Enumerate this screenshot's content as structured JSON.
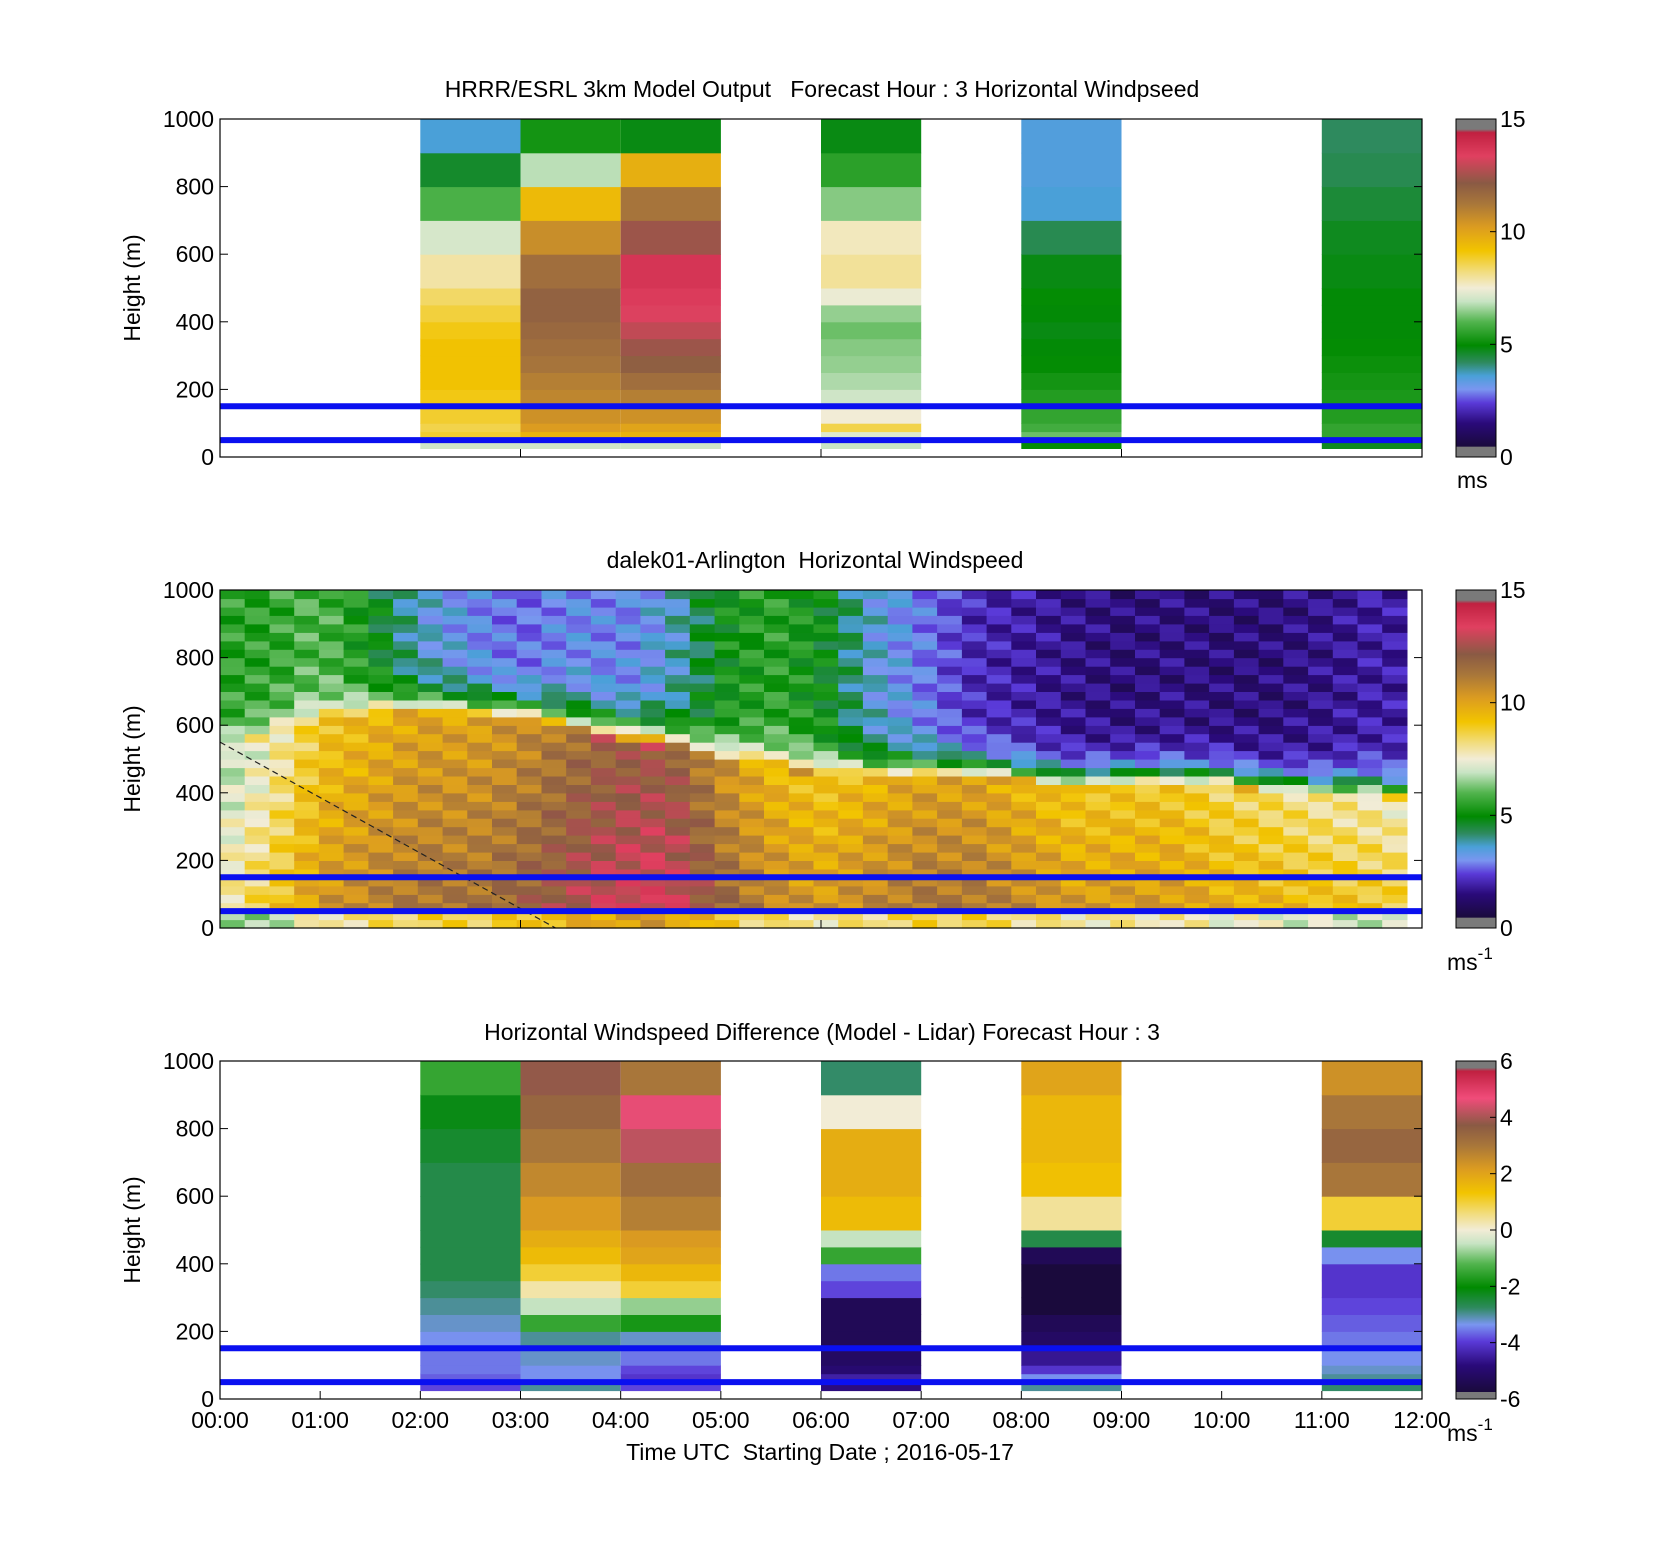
{
  "chart_data": [
    {
      "type": "heatmap",
      "title": "HRRR/ESRL 3km Model Output   Forecast Hour : 3 Horizontal Windpseed",
      "ylabel": "Height (m)",
      "xlabel": "",
      "xlim": [
        0,
        12
      ],
      "ylim": [
        0,
        1000
      ],
      "yticks": [
        "0",
        "200",
        "400",
        "600",
        "800",
        "1000"
      ],
      "colorbar": {
        "ticks": [
          "0",
          "5",
          "10",
          "15"
        ],
        "range": [
          0,
          15
        ],
        "unit": "ms"
      },
      "reference_lines_m": [
        50,
        150
      ],
      "height_bins_m": [
        25,
        50,
        75,
        100,
        150,
        200,
        250,
        300,
        350,
        400,
        450,
        500,
        600,
        700,
        800,
        900,
        1000
      ],
      "columns": [
        {
          "t0": 2,
          "t1": 3,
          "values": [
            7.0,
            8.8,
            8.6,
            8.8,
            9.0,
            9.2,
            9.2,
            9.2,
            9.0,
            8.7,
            8.4,
            7.9,
            7.1,
            5.9,
            4.6,
            3.6,
            2.5
          ]
        },
        {
          "t0": 3,
          "t1": 4,
          "values": [
            7.0,
            9.6,
            10.2,
            10.5,
            10.8,
            11.0,
            11.3,
            11.5,
            11.7,
            11.9,
            11.9,
            11.5,
            10.6,
            9.4,
            6.8,
            5.2,
            5.2
          ]
        },
        {
          "t0": 4,
          "t1": 5,
          "values": [
            7.0,
            9.6,
            10.0,
            10.5,
            11.0,
            11.5,
            12.0,
            12.4,
            12.9,
            13.3,
            13.6,
            13.9,
            12.4,
            11.3,
            9.7,
            4.8,
            4.8
          ]
        },
        {
          "t0": 6,
          "t1": 7,
          "values": [
            6.9,
            7.2,
            8.6,
            7.5,
            7.0,
            6.7,
            6.5,
            6.4,
            6.2,
            6.5,
            7.4,
            8.0,
            7.7,
            6.4,
            5.5,
            4.8,
            3.4
          ]
        },
        {
          "t0": 8,
          "t1": 9,
          "values": [
            5.0,
            6.2,
            5.8,
            5.6,
            5.4,
            5.2,
            5.0,
            4.9,
            4.8,
            4.9,
            5.0,
            4.8,
            4.3,
            3.6,
            3.5,
            3.5,
            3.2
          ]
        },
        {
          "t0": 11,
          "t1": 12,
          "values": [
            4.7,
            5.6,
            5.6,
            5.4,
            5.3,
            5.2,
            5.1,
            5.0,
            4.9,
            4.9,
            4.9,
            4.8,
            4.7,
            4.5,
            4.3,
            4.2,
            4.2
          ]
        }
      ]
    },
    {
      "type": "heatmap",
      "title": "dalek01-Arlington  Horizontal Windspeed",
      "ylabel": "Height (m)",
      "xlabel": "",
      "xlim": [
        0,
        12
      ],
      "ylim": [
        0,
        1000
      ],
      "yticks": [
        "0",
        "200",
        "400",
        "600",
        "800",
        "1000"
      ],
      "colorbar": {
        "ticks": [
          "0",
          "5",
          "10",
          "15"
        ],
        "range": [
          0,
          15
        ],
        "unit": "ms",
        "unit_exponent": "-1"
      },
      "reference_lines_m": [
        50,
        150
      ],
      "data_end_hour": 11.85,
      "dashed_line": {
        "from": [
          0,
          550
        ],
        "to": [
          3.35,
          0
        ]
      },
      "time_hours": [
        0,
        0.5,
        1,
        1.5,
        2,
        2.5,
        3,
        3.5,
        4,
        4.5,
        5,
        5.5,
        6,
        6.5,
        7,
        7.5,
        8,
        8.5,
        9,
        9.5,
        10,
        10.5,
        11,
        11.5,
        11.85
      ],
      "jet_top_m": [
        520,
        560,
        600,
        620,
        630,
        620,
        610,
        580,
        550,
        530,
        480,
        470,
        450,
        440,
        440,
        440,
        430,
        410,
        420,
        420,
        420,
        400,
        390,
        390,
        380
      ],
      "jet_core_ms": [
        8.0,
        9.0,
        10.5,
        11.0,
        11.5,
        11.5,
        12.0,
        12.8,
        13.5,
        13.6,
        12.0,
        11.0,
        10.5,
        11.0,
        11.5,
        11.5,
        11.0,
        10.5,
        10.5,
        10.5,
        10.0,
        9.8,
        9.5,
        9.3,
        9.0
      ],
      "aloft_ms": [
        5.5,
        5.5,
        6.0,
        5.0,
        3.5,
        3.0,
        2.5,
        3.0,
        2.8,
        3.5,
        5.0,
        5.5,
        5.0,
        3.5,
        2.8,
        1.8,
        1.5,
        1.2,
        1.0,
        1.1,
        1.0,
        1.0,
        1.2,
        1.5,
        1.5
      ]
    },
    {
      "type": "heatmap",
      "title": "Horizontal Windspeed Difference (Model - Lidar) Forecast Hour : 3",
      "ylabel": "Height (m)",
      "xlabel": "Time UTC  Starting Date ; 2016-05-17",
      "xlim": [
        0,
        12
      ],
      "ylim": [
        0,
        1000
      ],
      "xticks": [
        "00:00",
        "01:00",
        "02:00",
        "03:00",
        "04:00",
        "05:00",
        "06:00",
        "07:00",
        "08:00",
        "09:00",
        "10:00",
        "11:00",
        "12:00"
      ],
      "yticks": [
        "0",
        "200",
        "400",
        "600",
        "800",
        "1000"
      ],
      "colorbar": {
        "ticks": [
          "-6",
          "-4",
          "-2",
          "0",
          "2",
          "4",
          "6"
        ],
        "range": [
          -6,
          6
        ],
        "unit": "ms",
        "unit_exponent": "-1"
      },
      "reference_lines_m": [
        50,
        150
      ],
      "height_bins_m": [
        25,
        50,
        75,
        100,
        150,
        200,
        250,
        300,
        350,
        400,
        450,
        500,
        600,
        700,
        800,
        900,
        1000
      ],
      "columns": [
        {
          "t0": 2,
          "t1": 3,
          "values": [
            -4.0,
            -3.8,
            -3.6,
            -3.6,
            -3.4,
            -3.2,
            -3.0,
            -2.8,
            -2.6,
            -2.6,
            -2.6,
            -2.6,
            -2.6,
            -2.4,
            -2.2,
            -1.5,
            -0.8
          ]
        },
        {
          "t0": 3,
          "t1": 4,
          "values": [
            -3.0,
            -3.4,
            -3.4,
            -3.2,
            -3.0,
            -1.5,
            -0.5,
            0.3,
            1.0,
            1.5,
            1.8,
            2.2,
            2.6,
            3.0,
            3.4,
            3.8,
            2.6
          ]
        },
        {
          "t0": 4,
          "t1": 5,
          "values": [
            -4.0,
            -4.2,
            -4.0,
            -3.6,
            -3.2,
            -1.8,
            -0.8,
            1.0,
            1.6,
            2.0,
            2.2,
            2.8,
            3.2,
            4.2,
            4.6,
            3.0,
            1.8
          ]
        },
        {
          "t0": 6,
          "t1": 7,
          "values": [
            -5.0,
            -4.6,
            -5.2,
            -5.4,
            -5.6,
            -5.6,
            -5.6,
            -4.0,
            -3.6,
            -1.5,
            -0.5,
            1.5,
            1.8,
            1.8,
            0.0,
            -2.8,
            -3.6
          ]
        },
        {
          "t0": 8,
          "t1": 9,
          "values": [
            -3.0,
            -3.4,
            -4.2,
            -4.8,
            -5.4,
            -5.6,
            -6.2,
            -6.5,
            -6.2,
            -5.6,
            -2.6,
            0.4,
            1.4,
            1.6,
            1.6,
            2.0,
            2.0
          ]
        },
        {
          "t0": 11,
          "t1": 12,
          "values": [
            -2.8,
            -3.0,
            -3.2,
            -3.4,
            -3.6,
            -3.8,
            -4.0,
            -4.2,
            -4.2,
            -3.4,
            -2.4,
            1.0,
            3.0,
            3.4,
            3.0,
            2.4,
            1.8
          ]
        }
      ]
    }
  ]
}
